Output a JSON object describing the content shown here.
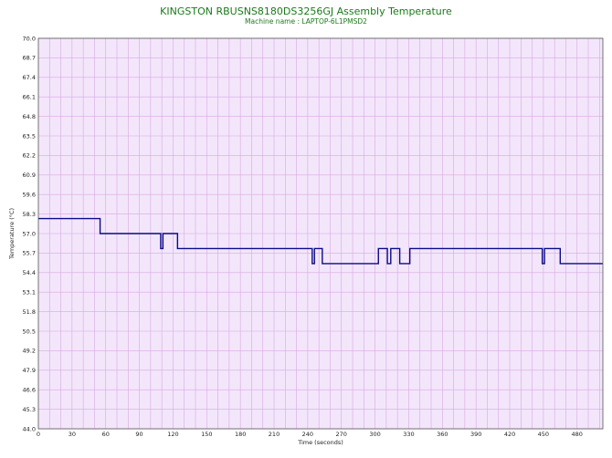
{
  "chart_data": {
    "type": "line",
    "title": "KINGSTON RBUSNS8180DS3256GJ Assembly Temperature",
    "subtitle": "Machine name : LAPTOP-6L1PMSD2",
    "xlabel": "Time (seconds)",
    "ylabel": "Temperature (°C)",
    "xlim": [
      0,
      503
    ],
    "ylim": [
      44.0,
      70.0
    ],
    "x_ticks": [
      0,
      30,
      60,
      90,
      120,
      150,
      180,
      210,
      240,
      270,
      300,
      330,
      360,
      390,
      420,
      450,
      480
    ],
    "y_ticks": [
      "44.0",
      "45.3",
      "46.6",
      "47.9",
      "49.2",
      "50.5",
      "51.8",
      "53.1",
      "54.4",
      "55.7",
      "57.0",
      "58.3",
      "59.6",
      "60.9",
      "62.2",
      "63.5",
      "64.8",
      "66.1",
      "67.4",
      "68.7",
      "70.0"
    ],
    "grid": true,
    "background_color": "#f3e6fb",
    "grid_color": "#d8a8e0",
    "series": [
      {
        "color": "#0a0a8a",
        "x": [
          0,
          55,
          55,
          109,
          109,
          111,
          111,
          124,
          124,
          244,
          244,
          246,
          246,
          253,
          253,
          303,
          303,
          311,
          311,
          314,
          314,
          322,
          322,
          331,
          331,
          449,
          449,
          451,
          451,
          465,
          465,
          503
        ],
        "y": [
          58.0,
          58.0,
          57.0,
          57.0,
          56.0,
          56.0,
          57.0,
          57.0,
          56.0,
          56.0,
          55.0,
          55.0,
          56.0,
          56.0,
          55.0,
          55.0,
          56.0,
          56.0,
          55.0,
          55.0,
          56.0,
          56.0,
          55.0,
          55.0,
          56.0,
          56.0,
          55.0,
          55.0,
          56.0,
          56.0,
          55.0,
          55.0
        ]
      }
    ]
  }
}
